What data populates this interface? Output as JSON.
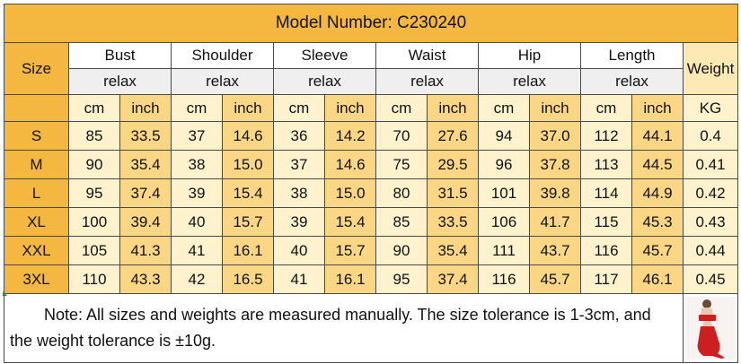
{
  "title": "Model Number: C230240",
  "size_header": "Size",
  "weight_header": "Weight",
  "weight_unit": "KG",
  "measure_groups": [
    {
      "name": "Bust",
      "fit": "relax",
      "units": [
        "cm",
        "inch"
      ]
    },
    {
      "name": "Shoulder",
      "fit": "relax",
      "units": [
        "cm",
        "inch"
      ]
    },
    {
      "name": "Sleeve",
      "fit": "relax",
      "units": [
        "cm",
        "inch"
      ]
    },
    {
      "name": "Waist",
      "fit": "relax",
      "units": [
        "cm",
        "inch"
      ]
    },
    {
      "name": "Hip",
      "fit": "relax",
      "units": [
        "cm",
        "inch"
      ]
    },
    {
      "name": "Length",
      "fit": "relax",
      "units": [
        "cm",
        "inch"
      ]
    }
  ],
  "rows": [
    {
      "size": "S",
      "values": [
        "85",
        "33.5",
        "37",
        "14.6",
        "36",
        "14.2",
        "70",
        "27.6",
        "94",
        "37.0",
        "112",
        "44.1"
      ],
      "weight": "0.4"
    },
    {
      "size": "M",
      "values": [
        "90",
        "35.4",
        "38",
        "15.0",
        "37",
        "14.6",
        "75",
        "29.5",
        "96",
        "37.8",
        "113",
        "44.5"
      ],
      "weight": "0.41"
    },
    {
      "size": "L",
      "values": [
        "95",
        "37.4",
        "39",
        "15.4",
        "38",
        "15.0",
        "80",
        "31.5",
        "101",
        "39.8",
        "114",
        "44.9"
      ],
      "weight": "0.42"
    },
    {
      "size": "XL",
      "values": [
        "100",
        "39.4",
        "40",
        "15.7",
        "39",
        "15.4",
        "85",
        "33.5",
        "106",
        "41.7",
        "115",
        "45.3"
      ],
      "weight": "0.43"
    },
    {
      "size": "XXL",
      "values": [
        "105",
        "41.3",
        "41",
        "16.1",
        "40",
        "15.7",
        "90",
        "35.4",
        "111",
        "43.7",
        "116",
        "45.7"
      ],
      "weight": "0.44"
    },
    {
      "size": "3XL",
      "values": [
        "110",
        "43.3",
        "42",
        "16.5",
        "41",
        "16.1",
        "95",
        "37.4",
        "116",
        "45.7",
        "117",
        "46.1"
      ],
      "weight": "0.45"
    }
  ],
  "note": "Note: All sizes and weights are  measured manually. The size tolerance is 1-3cm, and the weight tolerance is ±10g.",
  "colors": {
    "orange": "#f4b740",
    "cream": "#fff2cc",
    "gold": "#fbd685",
    "header_gray": "#efefef",
    "dress_red": "#cc1f1f"
  },
  "thumbnail_icon": "red-dress-product-photo"
}
